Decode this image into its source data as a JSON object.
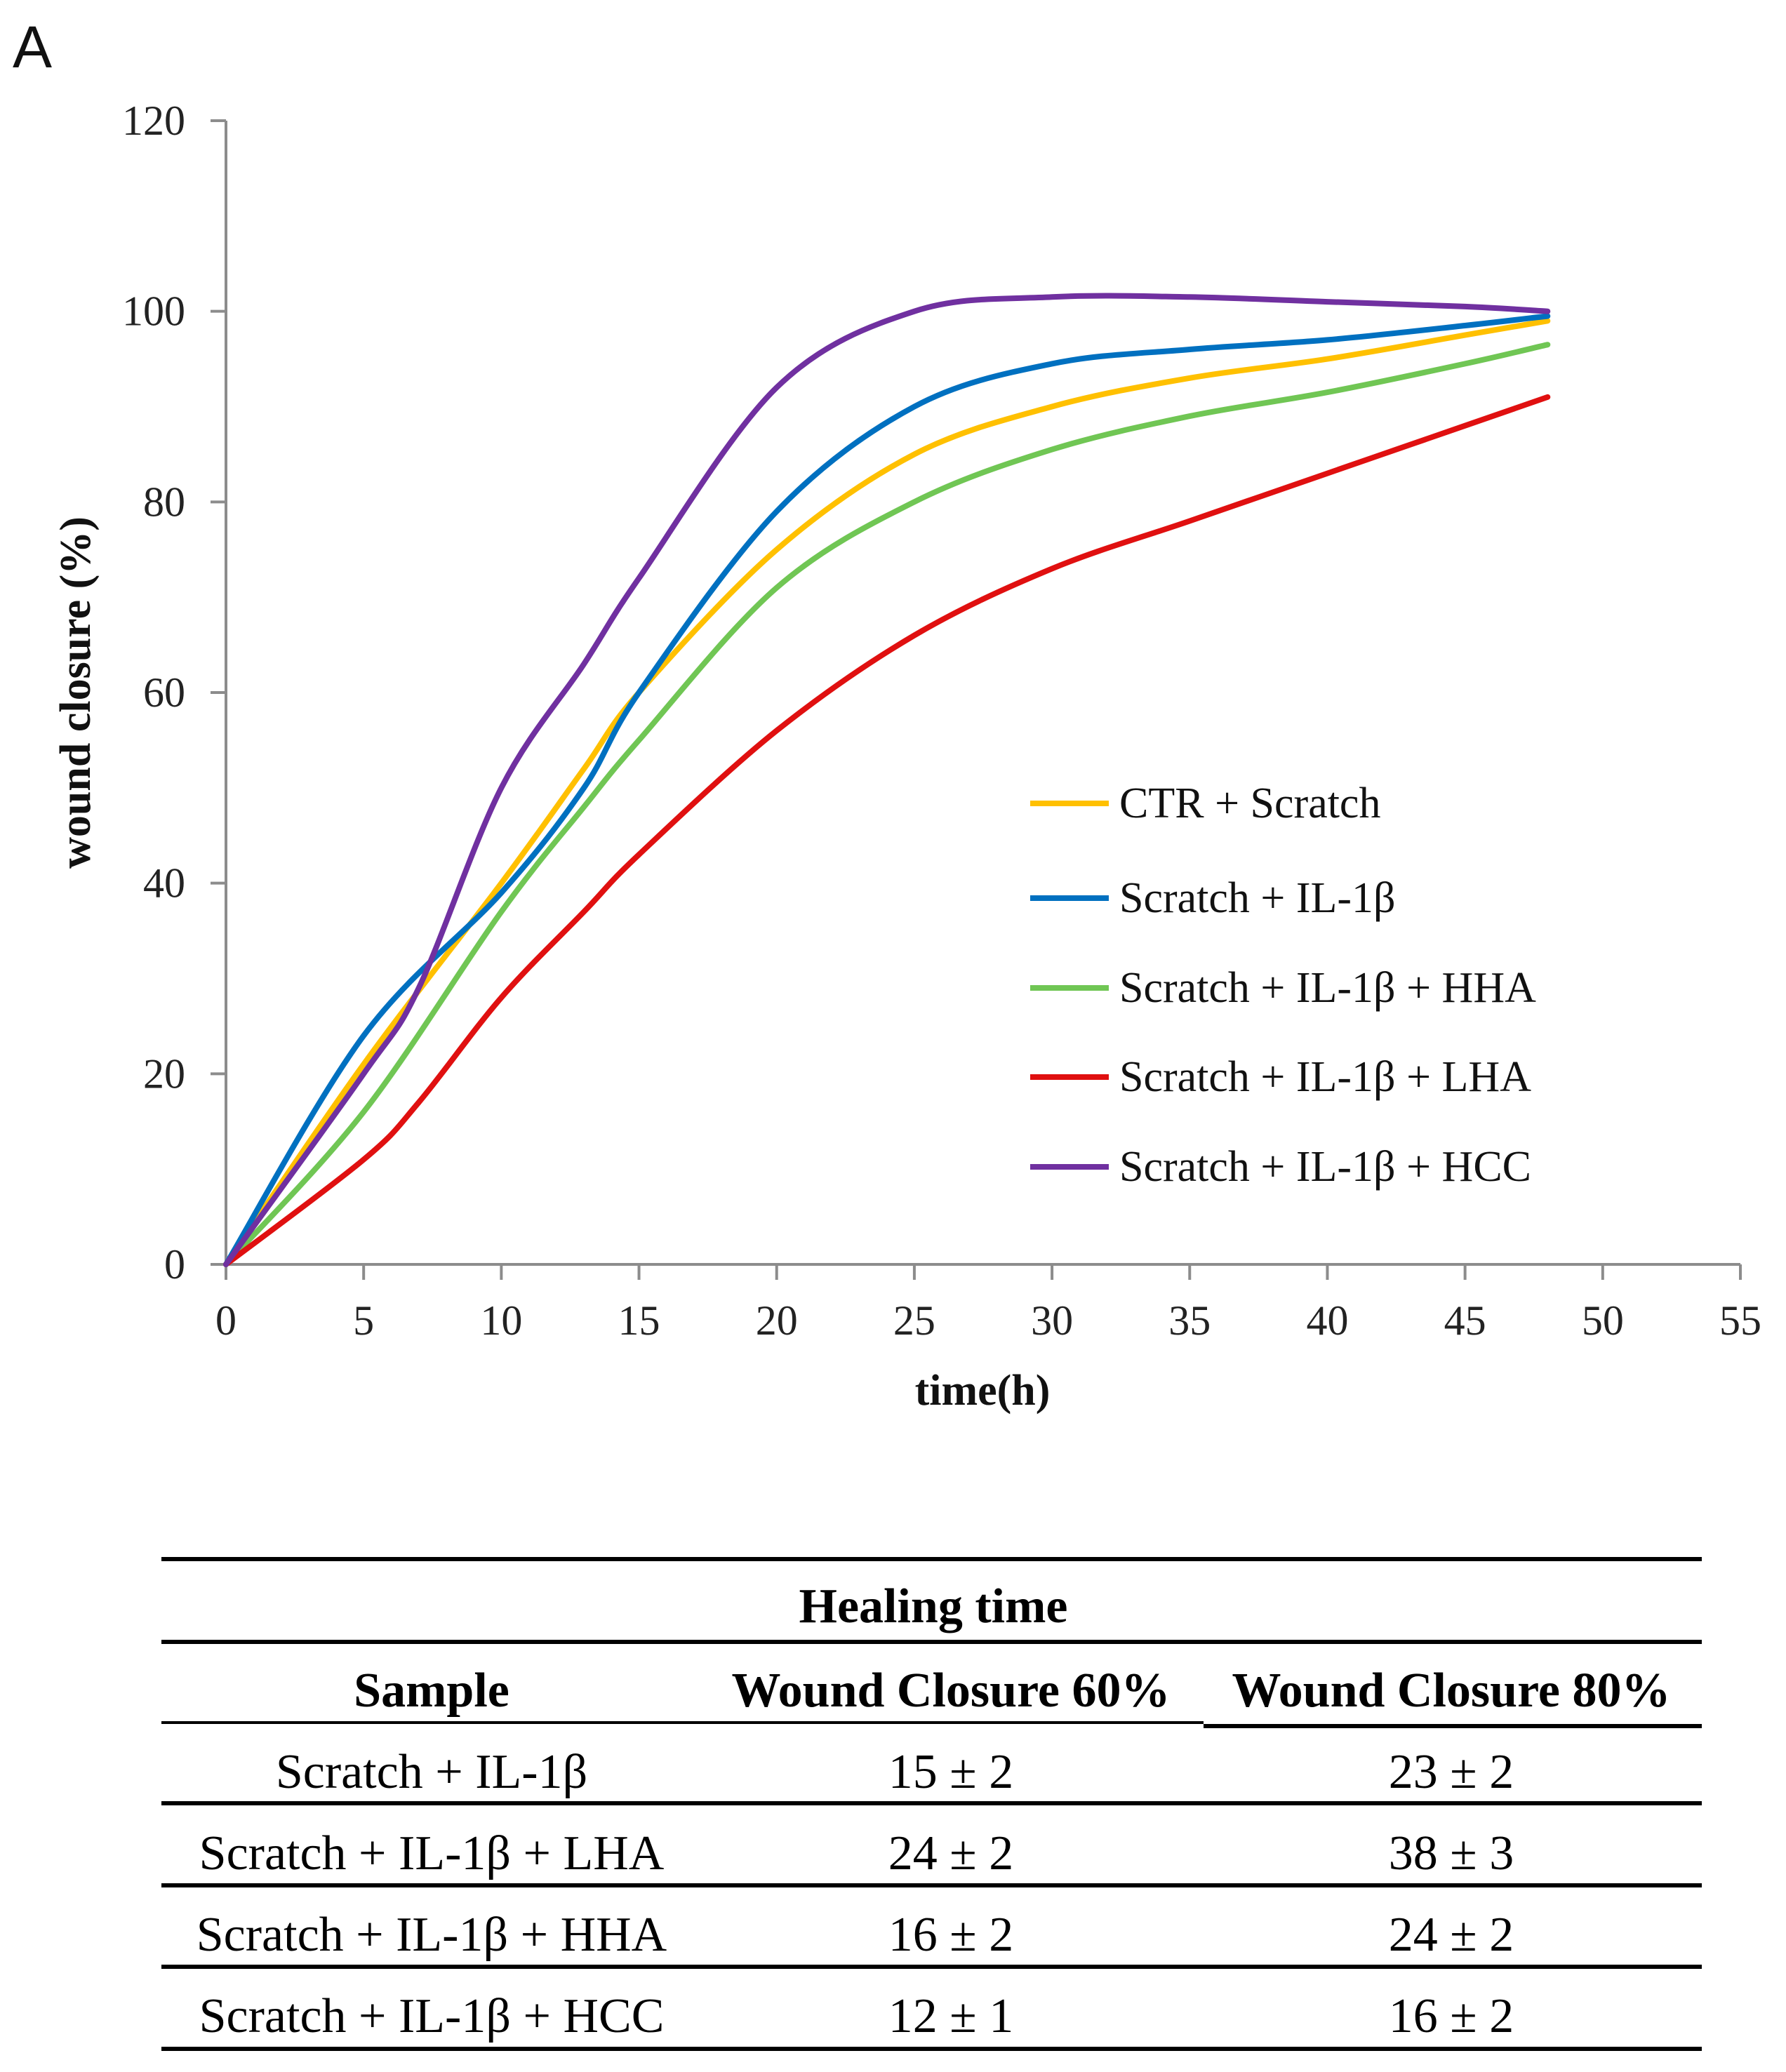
{
  "figure": {
    "panel_label": "A"
  },
  "chart_data": {
    "type": "line",
    "title": "",
    "xlabel": "time(h)",
    "ylabel": "wound closure (%)",
    "xlim": [
      0,
      55
    ],
    "ylim": [
      0,
      120
    ],
    "xticks": [
      0,
      5,
      10,
      15,
      20,
      25,
      30,
      35,
      40,
      45,
      50,
      55
    ],
    "yticks": [
      0,
      20,
      40,
      60,
      80,
      100,
      120
    ],
    "legend_position": "right",
    "series": [
      {
        "name": "CTR + Scratch",
        "color": "#FFC000",
        "x": [
          0,
          5,
          10,
          13,
          15,
          20,
          25,
          30,
          35,
          40,
          45,
          48
        ],
        "y": [
          0,
          21,
          40,
          52,
          60,
          75,
          85,
          90,
          93,
          95,
          97.5,
          99
        ]
      },
      {
        "name": "Scratch + IL-1β",
        "color": "#0070C0",
        "x": [
          0,
          5,
          10,
          13,
          15,
          20,
          25,
          30,
          35,
          40,
          45,
          48
        ],
        "y": [
          0,
          24,
          39,
          50,
          60,
          79,
          90,
          94.5,
          96,
          97,
          98.5,
          99.5
        ]
      },
      {
        "name": "Scratch + IL-1β + HHA",
        "color": "#70C654",
        "x": [
          0,
          5,
          10,
          13,
          15,
          20,
          25,
          30,
          35,
          40,
          45,
          48
        ],
        "y": [
          0,
          16,
          37,
          48,
          55,
          71,
          80,
          85.5,
          89,
          91.5,
          94.5,
          96.5
        ]
      },
      {
        "name": "Scratch + IL-1β + LHA",
        "color": "#E01010",
        "x": [
          0,
          5,
          7,
          10,
          13,
          15,
          20,
          25,
          30,
          35,
          40,
          45,
          48
        ],
        "y": [
          0,
          11,
          17,
          28,
          37,
          43,
          56,
          66,
          73,
          78,
          83,
          88,
          91
        ]
      },
      {
        "name": "Scratch + IL-1β + HCC",
        "color": "#7030A0",
        "x": [
          0,
          5,
          7,
          10,
          13,
          15,
          20,
          25,
          30,
          35,
          40,
          45,
          48
        ],
        "y": [
          0,
          20,
          29,
          50,
          63,
          72,
          92,
          100,
          101.5,
          101.5,
          101,
          100.5,
          100
        ]
      }
    ]
  },
  "table": {
    "title": "Healing time",
    "headers": [
      "Sample",
      "Wound Closure 60%",
      "Wound Closure 80%"
    ],
    "rows": [
      [
        "Scratch + IL-1β",
        "15 ± 2",
        "23 ± 2"
      ],
      [
        "Scratch + IL-1β + LHA",
        "24 ± 2",
        "38 ± 3"
      ],
      [
        "Scratch + IL-1β + HHA",
        "16 ± 2",
        "24 ± 2"
      ],
      [
        "Scratch + IL-1β + HCC",
        "12 ± 1",
        "16 ± 2"
      ]
    ]
  }
}
